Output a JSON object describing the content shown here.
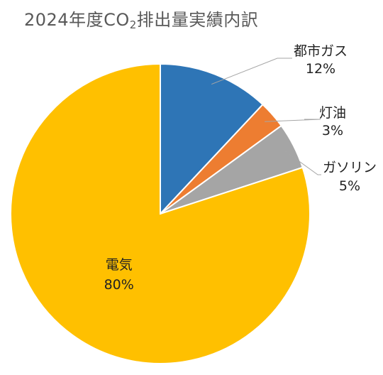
{
  "title": {
    "prefix": "2024年度CO",
    "subscript": "2",
    "suffix": "排出量実績内訳"
  },
  "chart_data": {
    "type": "pie",
    "title": "2024年度CO2排出量実績内訳",
    "start_angle_deg": 0,
    "direction": "clockwise",
    "legend": "none",
    "slices": [
      {
        "name": "都市ガス",
        "value": 12,
        "label": "12%",
        "color": "#2E75B6",
        "label_position": "outside-right"
      },
      {
        "name": "灯油",
        "value": 3,
        "label": "3%",
        "color": "#ED7D31",
        "label_position": "outside-right"
      },
      {
        "name": "ガソリン",
        "value": 5,
        "label": "5%",
        "color": "#A5A5A5",
        "label_position": "outside-right"
      },
      {
        "name": "電気",
        "value": 80,
        "label": "80%",
        "color": "#FFC000",
        "label_position": "inside"
      }
    ]
  }
}
